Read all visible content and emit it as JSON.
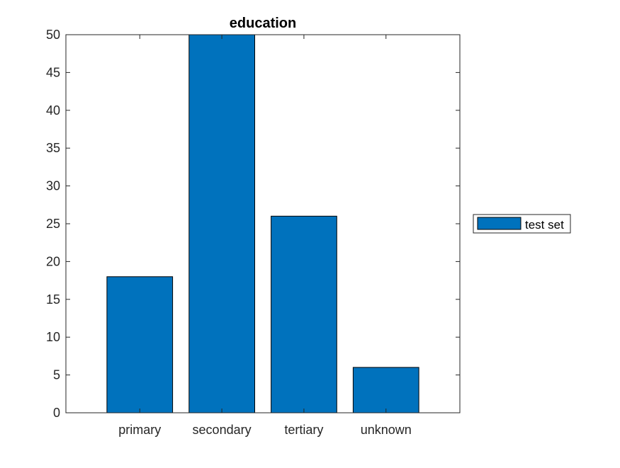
{
  "chart_data": {
    "type": "bar",
    "title": "education",
    "xlabel": "",
    "ylabel": "",
    "categories": [
      "primary",
      "secondary",
      "tertiary",
      "unknown"
    ],
    "series": [
      {
        "name": "test set",
        "values": [
          18,
          50,
          26,
          6
        ]
      }
    ],
    "ylim": [
      0,
      50
    ],
    "yticks": [
      0,
      5,
      10,
      15,
      20,
      25,
      30,
      35,
      40,
      45,
      50
    ],
    "grid": false,
    "legend_position": "outside-right",
    "bar_color": "#0072BD",
    "edge_color": "#000000"
  }
}
